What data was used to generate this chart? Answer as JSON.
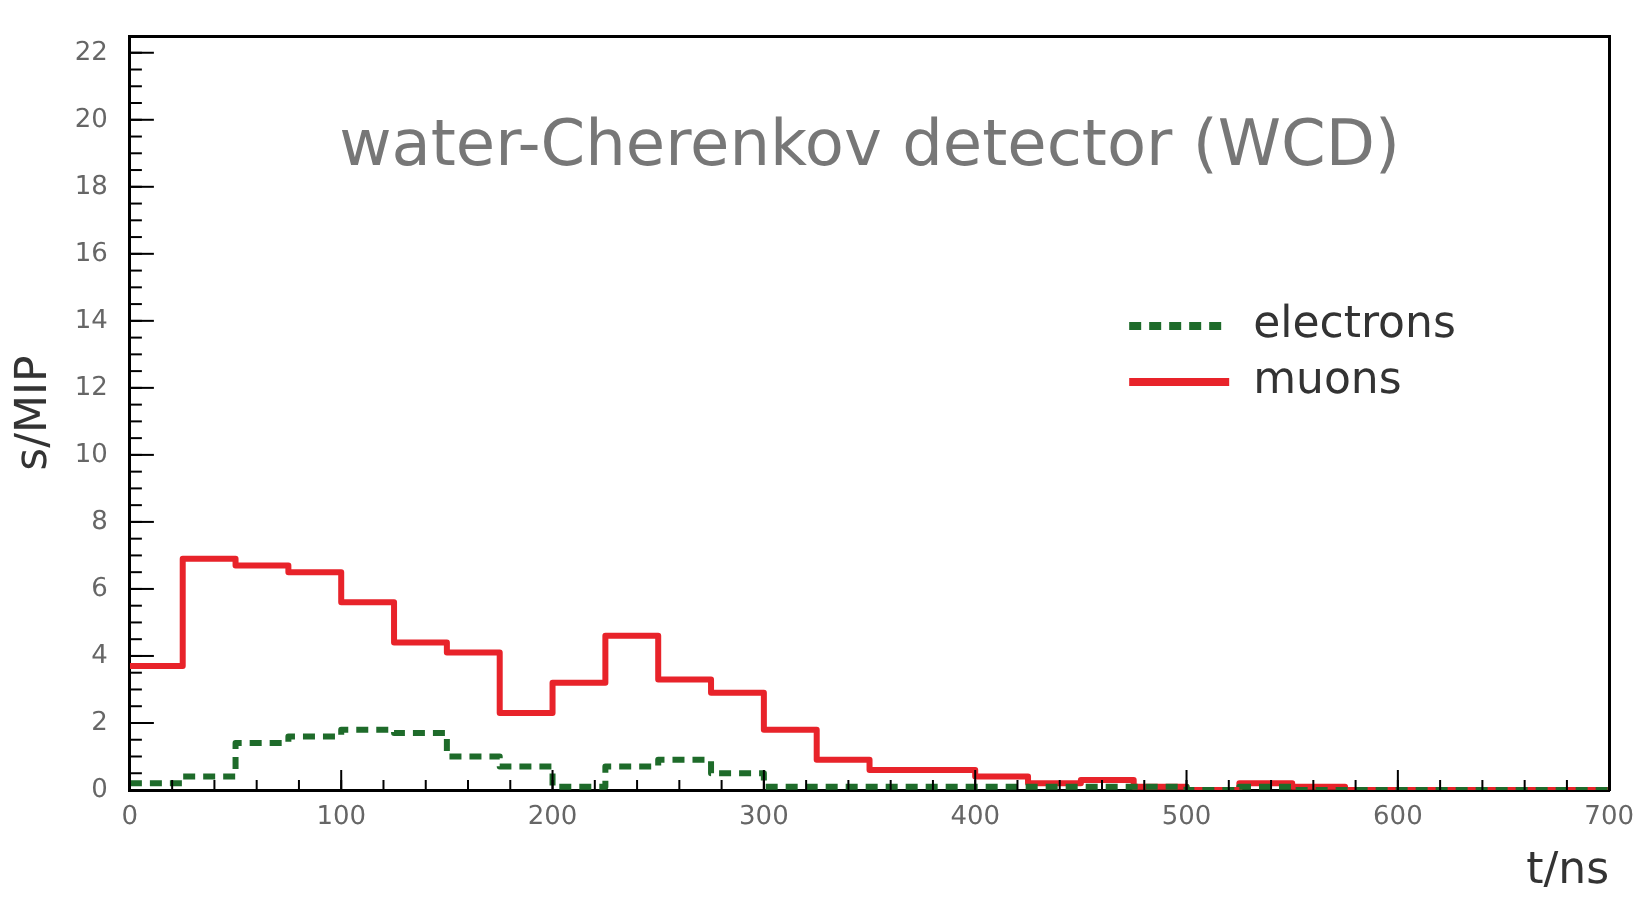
{
  "chart_data": {
    "type": "histogram",
    "title": "water-Cherenkov detector (WCD)",
    "xlabel": "t/ns",
    "ylabel": "s/MIP",
    "bins": [
      0,
      25,
      50,
      75,
      100,
      125,
      150,
      175,
      200,
      225,
      250,
      275,
      300,
      325,
      350,
      375,
      400,
      425,
      450,
      475,
      500,
      525,
      550,
      575,
      600,
      625,
      650,
      675,
      700
    ],
    "series": [
      {
        "name": "electrons",
        "color": "#1e6b2a",
        "line_style": "dashed",
        "values": [
          0.2,
          0.4,
          1.4,
          1.6,
          1.8,
          1.7,
          1.0,
          0.7,
          0.1,
          0.7,
          0.9,
          0.5,
          0.1,
          0.1,
          0.1,
          0.1,
          0.1,
          0.1,
          0.1,
          0.1,
          0,
          0.1,
          0,
          0,
          0,
          0,
          0,
          0
        ]
      },
      {
        "name": "muons",
        "color": "#e8232a",
        "line_style": "solid",
        "values": [
          3.7,
          6.9,
          6.7,
          6.5,
          5.6,
          4.4,
          4.1,
          2.3,
          3.2,
          4.6,
          3.3,
          2.9,
          1.8,
          0.9,
          0.6,
          0.6,
          0.4,
          0.2,
          0.3,
          0.1,
          0,
          0.2,
          0.1,
          0,
          0,
          0,
          0,
          0
        ]
      }
    ],
    "xlim": [
      0,
      700
    ],
    "xticks": [
      0,
      100,
      200,
      300,
      400,
      500,
      600,
      700
    ],
    "ylim": [
      0,
      22.5
    ],
    "yticks": [
      0,
      2,
      4,
      6,
      8,
      10,
      12,
      14,
      16,
      18,
      20,
      22
    ],
    "grid": false,
    "legend": "right",
    "marker": "none"
  }
}
